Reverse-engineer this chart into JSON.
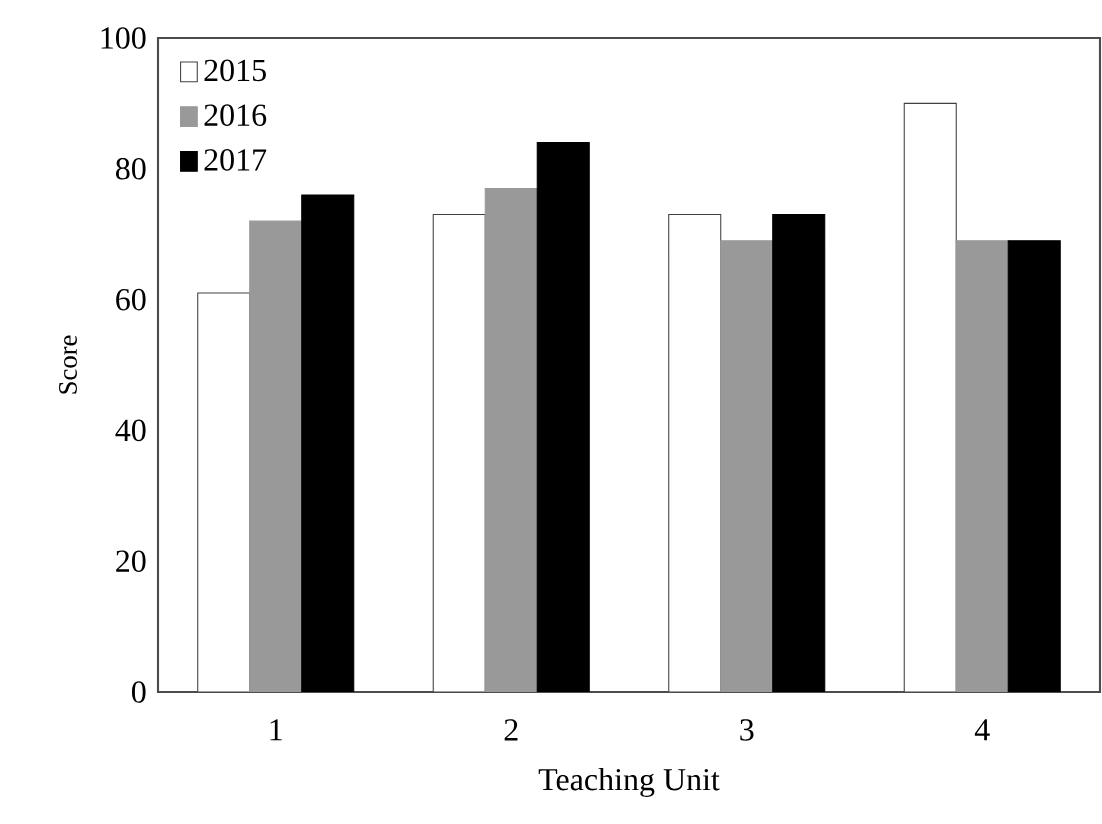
{
  "chart_data": {
    "type": "bar",
    "xlabel": "Teaching Unit",
    "ylabel": "Score",
    "categories": [
      "1",
      "2",
      "3",
      "4"
    ],
    "series": [
      {
        "name": "2015",
        "color": "#ffffff",
        "values": [
          61,
          73,
          73,
          90
        ]
      },
      {
        "name": "2016",
        "color": "#999999",
        "values": [
          72,
          77,
          69,
          69
        ]
      },
      {
        "name": "2017",
        "color": "#000000",
        "values": [
          76,
          84,
          73,
          69
        ]
      }
    ],
    "ylim": [
      0,
      100
    ],
    "yticks": [
      0,
      20,
      40,
      60,
      80,
      100
    ],
    "grid": false,
    "legend": "top left"
  }
}
